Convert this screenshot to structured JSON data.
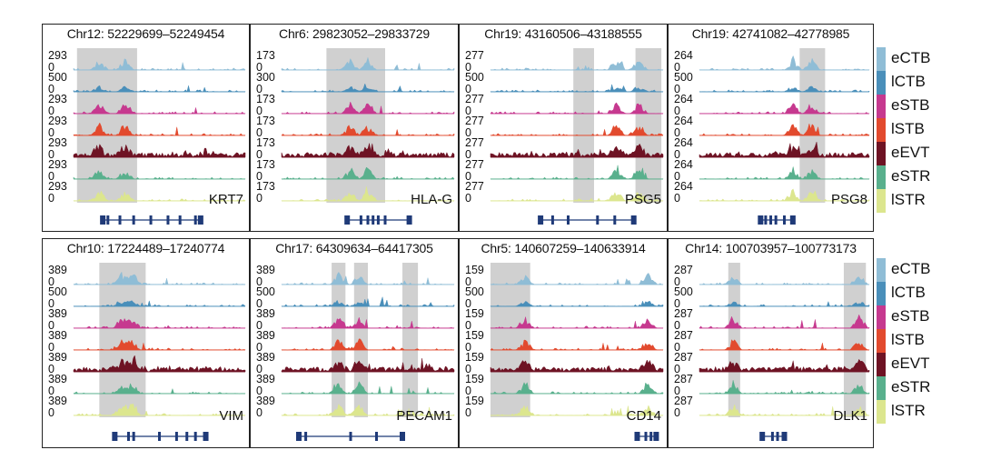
{
  "tracks": [
    {
      "key": "eCTB",
      "color": "#8fbdd6"
    },
    {
      "key": "lCTB",
      "color": "#4a8fba"
    },
    {
      "key": "eSTB",
      "color": "#c6398f"
    },
    {
      "key": "lSTB",
      "color": "#e24a2e"
    },
    {
      "key": "eEVT",
      "color": "#6e1324"
    },
    {
      "key": "eSTR",
      "color": "#59b08d"
    },
    {
      "key": "lSTR",
      "color": "#dce68e"
    }
  ],
  "legends": [
    {
      "items": [
        "eCTB",
        "lCTB",
        "eSTB",
        "lSTB",
        "eEVT",
        "eSTR",
        "lSTR"
      ]
    },
    {
      "items": [
        "eCTB",
        "lCTB",
        "eSTB",
        "lSTB",
        "eEVT",
        "eSTR",
        "lSTR"
      ]
    }
  ],
  "panels": [
    {
      "coord": "Chr12: 52229699–52249454",
      "gene": "KRT7",
      "scales": [
        "293",
        "500",
        "293",
        "293",
        "293",
        "293",
        "293"
      ]
    },
    {
      "coord": "Chr6: 29823052–29833729",
      "gene": "HLA-G",
      "scales": [
        "173",
        "300",
        "173",
        "173",
        "173",
        "173",
        "173"
      ]
    },
    {
      "coord": "Chr19: 43160506–43188555",
      "gene": "PSG5",
      "scales": [
        "277",
        "500",
        "277",
        "277",
        "277",
        "277",
        "277"
      ]
    },
    {
      "coord": "Chr19: 42741082–42778985",
      "gene": "PSG8",
      "scales": [
        "264",
        "500",
        "264",
        "264",
        "264",
        "264",
        "264"
      ]
    },
    {
      "coord": "Chr10: 17224489–17240774",
      "gene": "VIM",
      "scales": [
        "389",
        "500",
        "389",
        "389",
        "389",
        "389",
        "389"
      ]
    },
    {
      "coord": "Chr17: 64309634–64417305",
      "gene": "PECAM1",
      "scales": [
        "389",
        "500",
        "389",
        "389",
        "389",
        "389",
        "389"
      ]
    },
    {
      "coord": "Chr5: 140607259–140633914",
      "gene": "CD14",
      "scales": [
        "159",
        "500",
        "159",
        "159",
        "159",
        "159",
        "159"
      ]
    },
    {
      "coord": "Chr14: 100703957–100773173",
      "gene": "DLK1",
      "scales": [
        "287",
        "500",
        "287",
        "287",
        "287",
        "287",
        "287"
      ]
    }
  ],
  "zero_label": "0"
}
